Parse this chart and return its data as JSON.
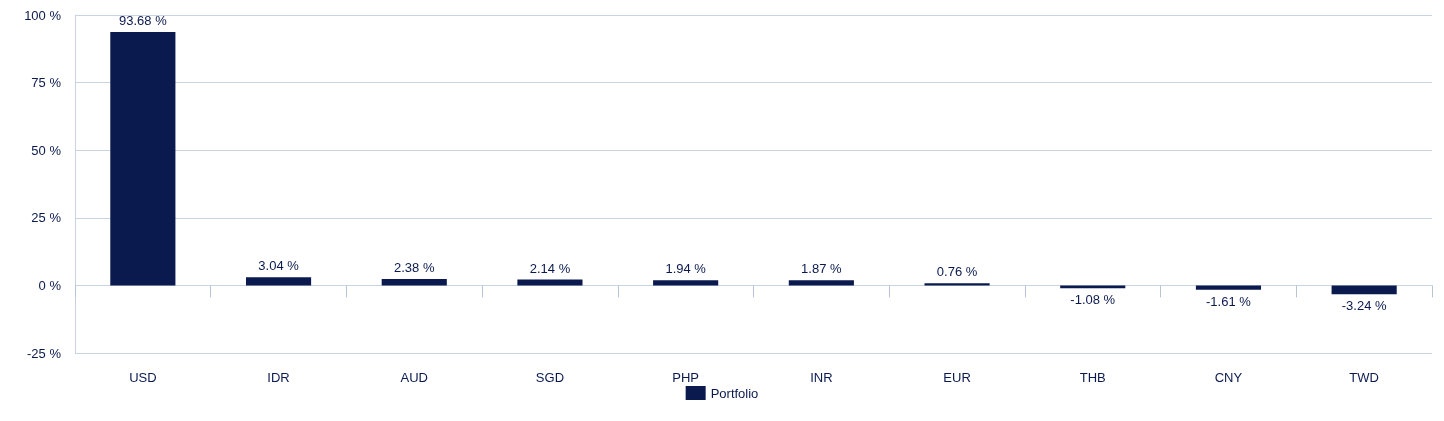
{
  "chart_data": {
    "type": "bar",
    "categories": [
      "USD",
      "IDR",
      "AUD",
      "SGD",
      "PHP",
      "INR",
      "EUR",
      "THB",
      "CNY",
      "TWD"
    ],
    "series": [
      {
        "name": "Portfolio",
        "color": "#0a1a4f",
        "values": [
          93.68,
          3.04,
          2.38,
          2.14,
          1.94,
          1.87,
          0.76,
          -1.08,
          -1.61,
          -3.24
        ],
        "value_labels": [
          "93.68 %",
          "3.04 %",
          "2.38 %",
          "2.14 %",
          "1.94 %",
          "1.87 %",
          "0.76 %",
          "-1.08 %",
          "-1.61 %",
          "-3.24 %"
        ]
      }
    ],
    "ylim": [
      -25,
      100
    ],
    "yticks": [
      {
        "value": -25,
        "label": "-25 %"
      },
      {
        "value": 0,
        "label": "0 %"
      },
      {
        "value": 25,
        "label": "25 %"
      },
      {
        "value": 50,
        "label": "50 %"
      },
      {
        "value": 75,
        "label": "75 %"
      },
      {
        "value": 100,
        "label": "100 %"
      }
    ],
    "grid": "y",
    "legend": "bottom"
  }
}
